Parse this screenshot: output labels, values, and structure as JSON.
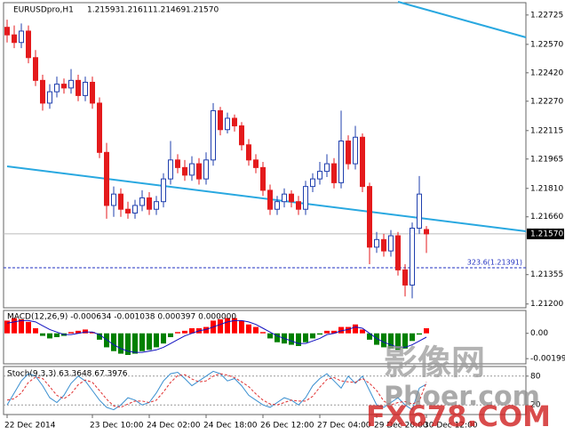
{
  "chart_data": [
    {
      "type": "candlestick",
      "title": "EURUSDpro,H1",
      "categories": [
        "22 Dec 2014",
        null,
        null,
        null,
        null,
        null,
        null,
        null,
        null,
        null,
        null,
        null,
        "23 Dec 10:00",
        null,
        null,
        null,
        null,
        null,
        null,
        null,
        "24 Dec 02:00",
        null,
        null,
        null,
        null,
        null,
        null,
        null,
        "24 Dec 18:00",
        null,
        null,
        null,
        null,
        null,
        null,
        null,
        "26 Dec 12:00",
        null,
        null,
        null,
        null,
        null,
        null,
        null,
        "27 Dec 04:00",
        null,
        null,
        null,
        null,
        null,
        null,
        null,
        "29 Dec 20:00",
        null,
        null,
        null,
        null,
        null,
        null,
        "30 Dec 12:00"
      ],
      "open": [
        1.2266,
        1.2262,
        1.2258,
        1.2264,
        1.225,
        1.2238,
        1.2226,
        1.2232,
        1.2236,
        1.2234,
        1.2238,
        1.223,
        1.2237,
        1.2226,
        1.22,
        1.2172,
        1.2178,
        1.217,
        1.2168,
        1.2172,
        1.2176,
        1.217,
        1.2174,
        1.2186,
        1.2196,
        1.2192,
        1.2188,
        1.2194,
        1.2186,
        1.2196,
        1.2222,
        1.2212,
        1.2218,
        1.2214,
        1.2204,
        1.2196,
        1.2192,
        1.218,
        1.217,
        1.2174,
        1.2178,
        1.2174,
        1.217,
        1.2182,
        1.2186,
        1.219,
        1.2194,
        1.2184,
        1.2206,
        1.2194,
        1.2208,
        1.2182,
        1.215,
        1.2154,
        1.2148,
        1.2156,
        1.2138,
        1.213,
        1.216,
        1.21593
      ],
      "high": [
        1.227,
        1.2267,
        1.2268,
        1.2267,
        1.2254,
        1.2241,
        1.2236,
        1.224,
        1.2239,
        1.2244,
        1.2241,
        1.224,
        1.224,
        1.2229,
        1.2205,
        1.2182,
        1.2181,
        1.2174,
        1.2175,
        1.218,
        1.2179,
        1.2177,
        1.2189,
        1.2206,
        1.2199,
        1.2196,
        1.2198,
        1.2197,
        1.22,
        1.2226,
        1.2224,
        1.2221,
        1.222,
        1.2216,
        1.2207,
        1.2199,
        1.2195,
        1.2183,
        1.2177,
        1.2181,
        1.218,
        1.2177,
        1.2185,
        1.2189,
        1.2195,
        1.2199,
        1.2197,
        1.2222,
        1.2209,
        1.2214,
        1.221,
        1.2184,
        1.2158,
        1.2157,
        1.2159,
        1.2158,
        1.2141,
        1.2163,
        1.21875,
        1.21611
      ],
      "low": [
        1.2258,
        1.2255,
        1.2255,
        1.2247,
        1.2235,
        1.2222,
        1.2223,
        1.2229,
        1.2231,
        1.2231,
        1.2227,
        1.2227,
        1.2223,
        1.2197,
        1.2165,
        1.2166,
        1.2166,
        1.2165,
        1.2165,
        1.2169,
        1.2167,
        1.2167,
        1.2171,
        1.2183,
        1.2189,
        1.2185,
        1.2185,
        1.2183,
        1.2183,
        1.2193,
        1.2209,
        1.221,
        1.2211,
        1.2201,
        1.2193,
        1.2189,
        1.2177,
        1.2167,
        1.2167,
        1.2171,
        1.2171,
        1.2167,
        1.2167,
        1.2179,
        1.2183,
        1.2187,
        1.2181,
        1.2181,
        1.2191,
        1.2191,
        1.2179,
        1.2141,
        1.2147,
        1.2145,
        1.2145,
        1.2135,
        1.2124,
        1.2123,
        1.2157,
        1.21469
      ],
      "close": [
        1.2262,
        1.2258,
        1.2264,
        1.225,
        1.2238,
        1.2226,
        1.2232,
        1.2236,
        1.2234,
        1.2238,
        1.223,
        1.2237,
        1.2226,
        1.22,
        1.2172,
        1.2178,
        1.217,
        1.2168,
        1.2172,
        1.2176,
        1.217,
        1.2174,
        1.2186,
        1.2196,
        1.2192,
        1.2188,
        1.2194,
        1.2186,
        1.2196,
        1.2222,
        1.2212,
        1.2218,
        1.2214,
        1.2204,
        1.2196,
        1.2192,
        1.218,
        1.217,
        1.2174,
        1.2178,
        1.2174,
        1.217,
        1.2182,
        1.2186,
        1.219,
        1.2194,
        1.2184,
        1.2206,
        1.2194,
        1.2208,
        1.2182,
        1.215,
        1.2154,
        1.2148,
        1.2156,
        1.2138,
        1.213,
        1.216,
        1.2178,
        1.2157
      ],
      "up_color": "#1f3fae",
      "down_color": "#e41a1c",
      "ylim": [
        1.2118,
        1.2279
      ],
      "yticks": [
        1.22725,
        {
          "value": 1.2257,
          "label": "1.22570"
        },
        {
          "value": 1.2242,
          "label": "1.22420"
        },
        {
          "value": 1.2227,
          "label": "1.22270"
        },
        1.22115,
        1.21965,
        {
          "value": 1.2181,
          "label": "1.21810"
        },
        {
          "value": 1.2166,
          "label": "1.21660"
        },
        1.21355,
        {
          "value": 1.212,
          "label": "1.21200"
        }
      ],
      "current_price": {
        "value": 1.2157,
        "label": "1.21570"
      },
      "level": {
        "value": 1.21391,
        "label": "323.6(1.21391)"
      }
    },
    {
      "type": "macd",
      "label": "MACD(12,26,9) -0.000634 -0.001038 0.000397 0.000000",
      "histogram": [
        0.001,
        0.0012,
        0.0011,
        0.0009,
        0.0004,
        -0.0002,
        -0.0004,
        -0.0003,
        -0.0002,
        0.0001,
        0.0002,
        0.0003,
        0.0001,
        -0.0005,
        -0.0011,
        -0.0014,
        -0.0016,
        -0.0017,
        -0.0016,
        -0.0014,
        -0.0013,
        -0.0011,
        -0.0008,
        -0.0003,
        0.0001,
        0.0002,
        0.0004,
        0.0004,
        0.0005,
        0.001,
        0.0011,
        0.0012,
        0.0012,
        0.001,
        0.0007,
        0.0005,
        0.0001,
        -0.0004,
        -0.0007,
        -0.0008,
        -0.0009,
        -0.001,
        -0.0007,
        -0.0004,
        -0.0001,
        0.0002,
        0.0002,
        0.0005,
        0.0005,
        0.0007,
        0.0003,
        -0.0005,
        -0.0009,
        -0.0011,
        -0.0012,
        -0.0013,
        -0.0012,
        -0.0006,
        -0.0001,
        0.0004
      ],
      "signal": [
        0.0008,
        0.0009,
        0.001,
        0.001,
        0.0009,
        0.0006,
        0.0003,
        0.0001,
        -0.0001,
        -0.0001,
        0.0,
        0.0001,
        0.0001,
        -0.0001,
        -0.0005,
        -0.0009,
        -0.0012,
        -0.0014,
        -0.0015,
        -0.0015,
        -0.0014,
        -0.0013,
        -0.0011,
        -0.0008,
        -0.0005,
        -0.0002,
        0.0,
        0.0002,
        0.0003,
        0.0005,
        0.0007,
        0.0009,
        0.001,
        0.001,
        0.0009,
        0.0007,
        0.0004,
        0.0001,
        -0.0002,
        -0.0004,
        -0.0006,
        -0.0008,
        -0.0008,
        -0.0006,
        -0.0004,
        -0.0001,
        0.0,
        0.0002,
        0.0003,
        0.0005,
        0.0004,
        0.0,
        -0.0004,
        -0.0007,
        -0.0009,
        -0.0011,
        -0.0011,
        -0.0009,
        -0.0006,
        -0.0003
      ],
      "pos_color": "#ff0000",
      "neg_color": "#008000",
      "signal_color": "#1010c0",
      "ylim": [
        -0.0024,
        0.0018
      ],
      "yticks": [
        {
          "value": 0,
          "label": "0.00"
        },
        -0.001991
      ]
    },
    {
      "type": "stochastic",
      "label": "Stoch(9,3,3) 63.3648 67.3976",
      "main": [
        20,
        45,
        70,
        85,
        80,
        60,
        35,
        25,
        40,
        65,
        80,
        70,
        50,
        30,
        15,
        10,
        20,
        35,
        30,
        20,
        25,
        45,
        70,
        85,
        88,
        75,
        60,
        70,
        80,
        90,
        85,
        70,
        75,
        60,
        40,
        30,
        20,
        15,
        25,
        35,
        30,
        20,
        35,
        60,
        75,
        85,
        70,
        55,
        80,
        65,
        80,
        50,
        20,
        15,
        25,
        35,
        20,
        10,
        55,
        63.3648
      ],
      "signal": [
        30,
        33,
        45,
        67,
        78,
        75,
        58,
        40,
        33,
        43,
        62,
        72,
        67,
        50,
        32,
        18,
        15,
        22,
        28,
        28,
        25,
        30,
        47,
        67,
        81,
        83,
        74,
        68,
        70,
        80,
        85,
        82,
        77,
        68,
        58,
        43,
        30,
        22,
        20,
        25,
        30,
        28,
        28,
        38,
        57,
        73,
        77,
        70,
        68,
        67,
        75,
        65,
        50,
        28,
        20,
        25,
        27,
        22,
        28,
        67.3976
      ],
      "main_color": "#3a8fd0",
      "signal_color": "#e03030",
      "ylim": [
        0,
        100
      ],
      "yticks": [
        80,
        20
      ]
    }
  ],
  "watermark": [
    "影像网",
    "Phoer.com",
    "FX678.COM"
  ]
}
